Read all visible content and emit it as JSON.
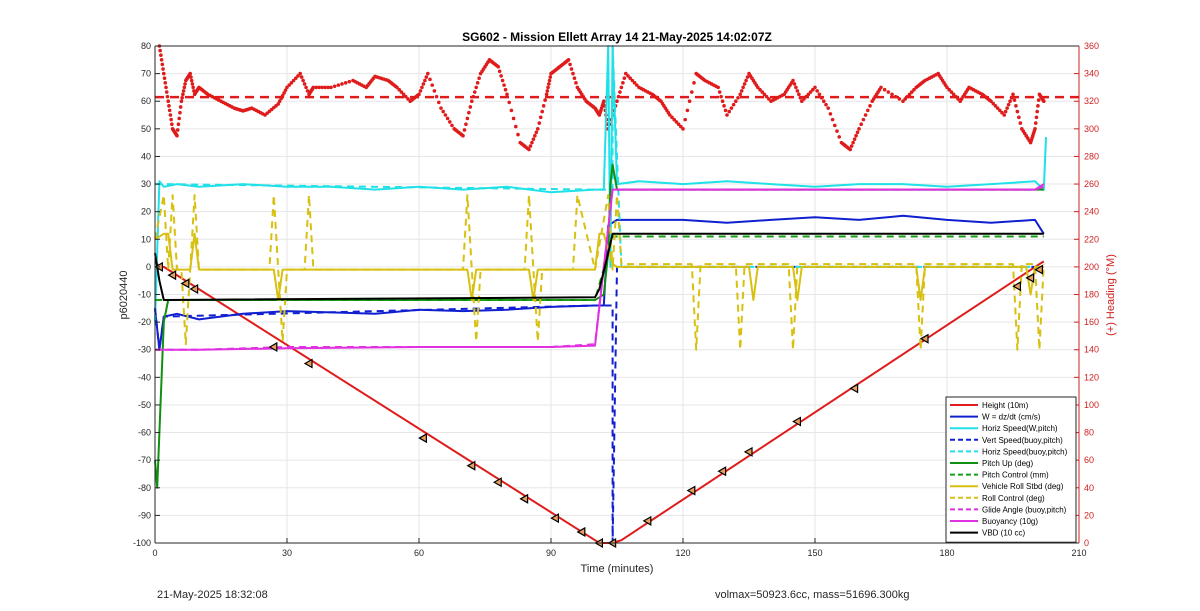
{
  "chart_data": {
    "type": "line",
    "title": "SG602 - Mission Ellett Array 14 21-May-2025 14:02:07Z",
    "xlabel": "Time (minutes)",
    "ylabel": "p6020440",
    "ylabel_right": "(+) Heading (°M)",
    "xlim": [
      0,
      210
    ],
    "ylim": [
      -100,
      80
    ],
    "ylim_right": [
      0,
      360
    ],
    "xticks": [
      0,
      30,
      60,
      90,
      120,
      150,
      180,
      210
    ],
    "yticks": [
      -100,
      -90,
      -80,
      -70,
      -60,
      -50,
      -40,
      -30,
      -20,
      -10,
      0,
      10,
      20,
      30,
      40,
      50,
      60,
      70,
      80
    ],
    "yticks_right": [
      0,
      20,
      40,
      60,
      80,
      100,
      120,
      140,
      160,
      180,
      200,
      220,
      240,
      260,
      280,
      300,
      320,
      340,
      360
    ],
    "grid": true,
    "legend_position": "bottom-right",
    "series": [
      {
        "name": "Height (10m)",
        "color": "#e01b1b",
        "style": "solid",
        "axis": "left",
        "x": [
          0,
          1,
          2,
          100,
          101,
          104,
          106,
          201,
          202
        ],
        "y": [
          2,
          0,
          0,
          -99,
          -100,
          -100,
          -99,
          1,
          2
        ]
      },
      {
        "name": "W = dz/dt (cm/s)",
        "color": "#1020d0",
        "style": "solid",
        "axis": "left",
        "x": [
          0,
          1,
          2,
          5,
          10,
          20,
          30,
          40,
          50,
          60,
          70,
          80,
          90,
          100,
          102,
          103,
          104,
          105,
          110,
          120,
          130,
          140,
          150,
          160,
          170,
          180,
          190,
          200,
          202
        ],
        "y": [
          -15,
          -30,
          -18,
          -17,
          -19,
          -17,
          -16,
          -16.5,
          -17,
          -15.5,
          -16,
          -15.5,
          -14.5,
          -14,
          -14,
          15,
          16,
          17,
          17,
          17,
          16,
          17,
          18,
          17,
          18.5,
          17,
          16,
          17,
          12
        ]
      },
      {
        "name": "Horiz Speed(W,pitch)",
        "color": "#20e0e8",
        "style": "solid",
        "axis": "left",
        "x": [
          0,
          1,
          2,
          5,
          10,
          20,
          30,
          40,
          50,
          60,
          70,
          80,
          90,
          100,
          102,
          103,
          103.5,
          104,
          105,
          110,
          120,
          130,
          140,
          150,
          160,
          170,
          180,
          190,
          200,
          202,
          202.5
        ],
        "y": [
          -20,
          31,
          29,
          30,
          29,
          30,
          29,
          29,
          28,
          29,
          28,
          29,
          27,
          28,
          28,
          80,
          0,
          80,
          30,
          31,
          30,
          31,
          30,
          29,
          30,
          30,
          29,
          30,
          31,
          28,
          47
        ]
      },
      {
        "name": "Vert Speed(buoy,pitch)",
        "color": "#1020d0",
        "style": "dashed",
        "axis": "left",
        "x": [
          0,
          1,
          2,
          100,
          104,
          104,
          105,
          110,
          200,
          202
        ],
        "y": [
          -15,
          -30,
          -18,
          -14,
          -14,
          -100,
          0,
          0,
          0,
          0
        ]
      },
      {
        "name": "Horiz Speed(buoy,pitch)",
        "color": "#20e0e8",
        "style": "dashed",
        "axis": "left",
        "x": [
          0,
          2,
          100,
          104,
          104,
          106,
          110,
          202
        ],
        "y": [
          30,
          30,
          28,
          28,
          80,
          0,
          0,
          0
        ]
      },
      {
        "name": "Pitch Up (deg)",
        "color": "#109010",
        "style": "solid",
        "axis": "left",
        "x": [
          0,
          0.5,
          1,
          1.5,
          2,
          3,
          100,
          101,
          102,
          103,
          103.5,
          104,
          105,
          110,
          202
        ],
        "y": [
          -70,
          -80,
          -60,
          -40,
          -20,
          -12,
          -12,
          -11,
          -10,
          5,
          30,
          37,
          28,
          28,
          28
        ]
      },
      {
        "name": "Pitch Control (mm)",
        "color": "#18a018",
        "style": "dashed",
        "axis": "left",
        "x": [
          0,
          2,
          100,
          104,
          202
        ],
        "y": [
          -12,
          -12,
          -12,
          11,
          11
        ]
      },
      {
        "name": "Vehicle Roll Stbd (deg)",
        "color": "#d8c010",
        "style": "solid",
        "axis": "left",
        "x": [
          0,
          2,
          3,
          4,
          8,
          9,
          10,
          11,
          20,
          25,
          27,
          28,
          29,
          30,
          40,
          50,
          60,
          70,
          71,
          72,
          73,
          74,
          80,
          85,
          86,
          87,
          88,
          95,
          100,
          101,
          102,
          104,
          105,
          110,
          120,
          130,
          135,
          136,
          137,
          140,
          145,
          146,
          147,
          150,
          160,
          170,
          173,
          174,
          175,
          176,
          180,
          190,
          198,
          199,
          200,
          201,
          202
        ],
        "y": [
          10,
          12,
          12,
          -1,
          -1,
          12,
          -1,
          -1,
          -1,
          -1,
          -1,
          -12,
          -1,
          -1,
          -1,
          -1,
          -1,
          -1,
          -1,
          -12,
          -1,
          -1,
          -1,
          -1,
          -12,
          -1,
          -1,
          -1,
          -1,
          12,
          12,
          1,
          0,
          0,
          0,
          0,
          0,
          -12,
          0,
          0,
          0,
          -12,
          0,
          0,
          0,
          0,
          0,
          -12,
          0,
          0,
          0,
          0,
          0,
          -10,
          0,
          0,
          0
        ]
      },
      {
        "name": "Roll Control (deg)",
        "color": "#d8c010",
        "style": "dashed",
        "axis": "left",
        "x": [
          0,
          2,
          3,
          4,
          5,
          6,
          7,
          8,
          9,
          10,
          11,
          20,
          26,
          27,
          28,
          29,
          30,
          34,
          35,
          36,
          40,
          50,
          60,
          70,
          71,
          72,
          73,
          74,
          80,
          84,
          85,
          86,
          87,
          88,
          95,
          96,
          100,
          103,
          104,
          105,
          106,
          110,
          120,
          122,
          123,
          124,
          130,
          132,
          133,
          134,
          140,
          144,
          145,
          146,
          147,
          150,
          160,
          170,
          173,
          174,
          175,
          176,
          180,
          190,
          195,
          196,
          197,
          200,
          201,
          202
        ],
        "y": [
          10,
          26,
          -1,
          26,
          -1,
          -1,
          -28,
          -1,
          26,
          -1,
          -1,
          -1,
          -1,
          26,
          -1,
          -27,
          -1,
          -1,
          26,
          -1,
          -1,
          -1,
          -1,
          -1,
          26,
          -1,
          -27,
          -1,
          -1,
          -1,
          26,
          -1,
          -27,
          -1,
          -1,
          26,
          -1,
          26,
          -1,
          26,
          1,
          1,
          1,
          1,
          -30,
          1,
          1,
          1,
          -30,
          1,
          1,
          1,
          -30,
          1,
          1,
          1,
          1,
          1,
          1,
          -30,
          1,
          1,
          1,
          1,
          1,
          -30,
          1,
          1,
          -30,
          1
        ]
      },
      {
        "name": "Glide Angle (buoy,pitch)",
        "color": "#e030e0",
        "style": "dashed",
        "axis": "left",
        "x": [
          0,
          1,
          2,
          10,
          30,
          60,
          90,
          100,
          104,
          105,
          110,
          150,
          200,
          202
        ],
        "y": [
          -30,
          -30,
          -30,
          -30,
          -29,
          -29,
          -29,
          -28,
          28,
          28,
          28,
          28,
          28,
          29
        ]
      },
      {
        "name": "Buoyancy (10g)",
        "color": "#e030e0",
        "style": "solid",
        "axis": "left",
        "x": [
          0,
          1,
          2,
          10,
          30,
          60,
          90,
          100,
          104,
          105,
          110,
          150,
          200,
          202
        ],
        "y": [
          -30,
          -30,
          -30,
          -30,
          -29.5,
          -29,
          -29,
          -28.5,
          28,
          28,
          28,
          28,
          28,
          30
        ]
      },
      {
        "name": "VBD (10 cc)",
        "color": "#000000",
        "style": "solid",
        "axis": "left",
        "x": [
          0,
          1,
          2,
          100,
          101,
          103,
          104,
          105,
          110,
          202
        ],
        "y": [
          5,
          -5,
          -12,
          -11,
          -8,
          5,
          12,
          12,
          12,
          12
        ]
      }
    ],
    "heading": {
      "name": "Heading",
      "color": "#e01b1b",
      "axis": "right",
      "mean": 323,
      "x": [
        1,
        2,
        3,
        4,
        5,
        6,
        7,
        8,
        9,
        10,
        12,
        15,
        18,
        20,
        22,
        25,
        28,
        30,
        33,
        35,
        36,
        40,
        45,
        48,
        50,
        53,
        55,
        58,
        60,
        62,
        65,
        68,
        70,
        72,
        74,
        76,
        78,
        80,
        83,
        85,
        87,
        89,
        90,
        92,
        94,
        96,
        98,
        100,
        101,
        102,
        103,
        105,
        107,
        110,
        113,
        115,
        117,
        120,
        123,
        125,
        128,
        130,
        133,
        135,
        137,
        140,
        143,
        145,
        147,
        150,
        153,
        156,
        158,
        160,
        163,
        165,
        170,
        173,
        175,
        178,
        180,
        183,
        185,
        188,
        190,
        193,
        195,
        197,
        199,
        200,
        201,
        202
      ],
      "y": [
        360,
        340,
        320,
        300,
        295,
        320,
        335,
        340,
        325,
        330,
        325,
        320,
        315,
        313,
        315,
        310,
        318,
        330,
        340,
        325,
        330,
        330,
        335,
        330,
        338,
        335,
        330,
        320,
        325,
        340,
        315,
        300,
        295,
        320,
        340,
        350,
        345,
        325,
        290,
        285,
        300,
        325,
        340,
        345,
        350,
        330,
        320,
        315,
        310,
        320,
        300,
        320,
        340,
        330,
        325,
        320,
        310,
        300,
        340,
        335,
        330,
        310,
        325,
        340,
        330,
        320,
        325,
        335,
        320,
        330,
        315,
        290,
        285,
        300,
        320,
        330,
        320,
        330,
        335,
        340,
        330,
        320,
        330,
        325,
        320,
        310,
        325,
        300,
        290,
        300,
        325,
        320
      ]
    },
    "markers": {
      "name": "Height markers",
      "x": [
        1,
        4,
        7,
        9,
        27,
        35,
        61,
        72,
        78,
        84,
        91,
        97,
        101,
        104,
        112,
        122,
        129,
        135,
        146,
        159,
        175,
        196,
        199,
        201
      ],
      "y": [
        0,
        -3,
        -6,
        -8,
        -29,
        -35,
        -62,
        -72,
        -78,
        -84,
        -91,
        -96,
        -100,
        -100,
        -92,
        -81,
        -74,
        -67,
        -56,
        -44,
        -26,
        -7,
        -4,
        -1
      ]
    }
  },
  "footer": {
    "timestamp": "21-May-2025 18:32:08",
    "mass_info": "volmax=50923.6cc, mass=51696.300kg"
  }
}
